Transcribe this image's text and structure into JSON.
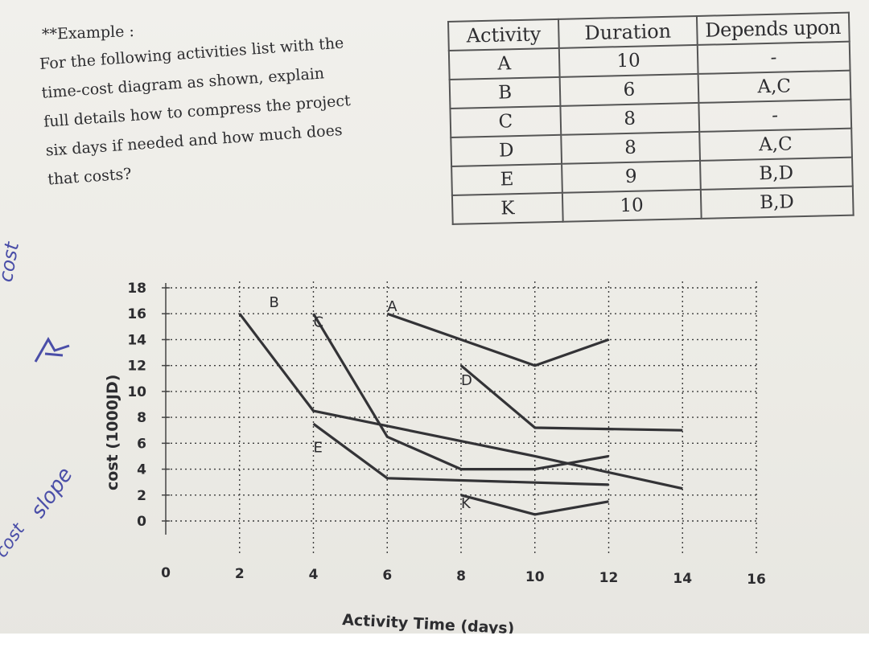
{
  "example_label": "**Example :",
  "problem_lines": [
    "For the following activities list with the",
    "time-cost diagram as shown, explain",
    "full details how to compress the project",
    "six days if needed and how much does",
    "that costs?"
  ],
  "table": {
    "headers": [
      "Activity",
      "Duration",
      "Depends upon"
    ],
    "rows": [
      [
        "A",
        "10",
        "-"
      ],
      [
        "B",
        "6",
        "A,C"
      ],
      [
        "C",
        "8",
        "-"
      ],
      [
        "D",
        "8",
        "A,C"
      ],
      [
        "E",
        "9",
        "B,D"
      ],
      [
        "K",
        "10",
        "B,D"
      ]
    ]
  },
  "handwritten": {
    "left_top": "cost",
    "left_mid": "slope",
    "left_bottom": "cost"
  },
  "chart_data": {
    "type": "line",
    "xlabel": "Activity Time (days)",
    "ylabel": "cost (1000JD)",
    "xlim": [
      0,
      16
    ],
    "ylim": [
      0,
      18
    ],
    "x_ticks": [
      "0",
      "2",
      "4",
      "6",
      "8",
      "10",
      "12",
      "14",
      "16"
    ],
    "y_ticks": [
      "0",
      "2",
      "4",
      "6",
      "8",
      "10",
      "12",
      "14",
      "16",
      "18"
    ],
    "grid": true,
    "series": [
      {
        "name": "A",
        "label_at": [
          6,
          16.2
        ],
        "points": [
          [
            6,
            16
          ],
          [
            10,
            12
          ],
          [
            12,
            14
          ]
        ]
      },
      {
        "name": "B",
        "label_at": [
          2.8,
          16.5
        ],
        "points": [
          [
            2,
            16
          ],
          [
            4,
            8.5
          ],
          [
            10,
            5
          ],
          [
            14,
            2.5
          ]
        ]
      },
      {
        "name": "C",
        "label_at": [
          4,
          15
        ],
        "points": [
          [
            4,
            16
          ],
          [
            6,
            6.5
          ],
          [
            8,
            4
          ],
          [
            10,
            4
          ],
          [
            12,
            5
          ]
        ]
      },
      {
        "name": "D",
        "label_at": [
          8,
          10.5
        ],
        "points": [
          [
            8,
            12
          ],
          [
            10,
            7.2
          ],
          [
            14,
            7
          ]
        ]
      },
      {
        "name": "E",
        "label_at": [
          4,
          5.3
        ],
        "points": [
          [
            4,
            7.5
          ],
          [
            6,
            3.3
          ],
          [
            12,
            2.8
          ]
        ]
      },
      {
        "name": "K",
        "label_at": [
          8,
          1
        ],
        "points": [
          [
            8,
            2
          ],
          [
            10,
            0.5
          ],
          [
            12,
            1.5
          ]
        ]
      }
    ]
  }
}
